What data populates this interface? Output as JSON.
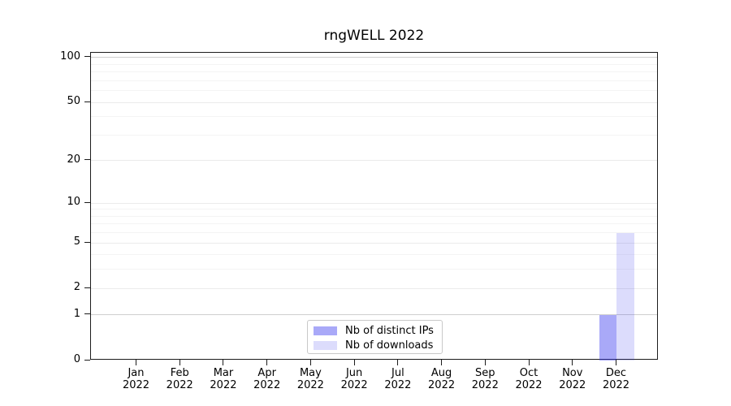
{
  "chart_data": {
    "type": "bar",
    "title": "rngWELL 2022",
    "x": {
      "months": [
        "Jan",
        "Feb",
        "Mar",
        "Apr",
        "May",
        "Jun",
        "Jul",
        "Aug",
        "Sep",
        "Oct",
        "Nov",
        "Dec"
      ],
      "year": "2022"
    },
    "series": [
      {
        "name": "Nb of distinct IPs",
        "color": "rgba(60,60,240,0.44)",
        "values": [
          0,
          0,
          0,
          0,
          0,
          0,
          0,
          0,
          0,
          0,
          0,
          1
        ]
      },
      {
        "name": "Nb of downloads",
        "color": "rgba(60,60,240,0.18)",
        "values": [
          0,
          0,
          0,
          0,
          0,
          0,
          0,
          0,
          0,
          0,
          0,
          6
        ]
      }
    ],
    "yscale": "log1p",
    "ylim": [
      0,
      108
    ],
    "yticks": [
      100,
      50,
      20,
      10,
      5,
      2,
      1,
      0
    ],
    "grid": {
      "emphasis_values": [
        100,
        1
      ],
      "major_values": [
        50,
        20,
        10,
        5,
        2
      ],
      "minor_values": [
        90,
        80,
        70,
        60,
        40,
        30,
        9,
        8,
        7,
        6,
        4,
        3
      ],
      "emphasis_color": "#cfcfcf",
      "major_color": "#ebebeb",
      "minor_color": "#f4f4f4"
    },
    "legend": {
      "position": "bottom-center"
    }
  },
  "colors": {
    "axis": "#1c1c1c",
    "text": "#000000",
    "legend_border": "#c9c9c9",
    "background": "#ffffff"
  }
}
